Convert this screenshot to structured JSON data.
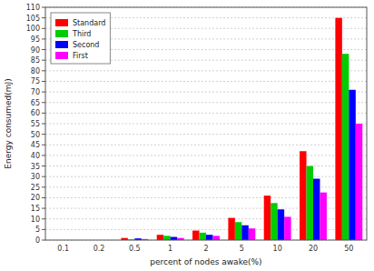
{
  "chart_data": {
    "type": "bar",
    "xlabel": "percent of nodes awake(%)",
    "ylabel": "Energy consumed(mJ)",
    "categories": [
      "0.1",
      "0.2",
      "0.5",
      "1",
      "2",
      "5",
      "10",
      "20",
      "50"
    ],
    "series": [
      {
        "name": "Standard",
        "color": "#ff0000",
        "values": [
          0,
          0,
          1.0,
          2.5,
          4.5,
          10.5,
          21.0,
          42.0,
          105.0
        ]
      },
      {
        "name": "Third",
        "color": "#00cc00",
        "values": [
          0,
          0,
          0.3,
          2.0,
          3.5,
          8.5,
          17.5,
          35.0,
          88.0
        ]
      },
      {
        "name": "Second",
        "color": "#0000ff",
        "values": [
          0,
          0,
          0.8,
          1.5,
          2.5,
          7.0,
          14.5,
          29.0,
          71.0
        ]
      },
      {
        "name": "First",
        "color": "#ff00ff",
        "values": [
          0,
          0,
          0.5,
          1.0,
          2.0,
          5.5,
          11.0,
          22.5,
          55.0
        ]
      }
    ],
    "ylim": [
      0,
      110
    ],
    "yticks": [
      0,
      5,
      10,
      15,
      20,
      25,
      30,
      35,
      40,
      45,
      50,
      55,
      60,
      65,
      70,
      75,
      80,
      85,
      90,
      95,
      100,
      105,
      110
    ],
    "grid": true,
    "legend": "upper left"
  }
}
